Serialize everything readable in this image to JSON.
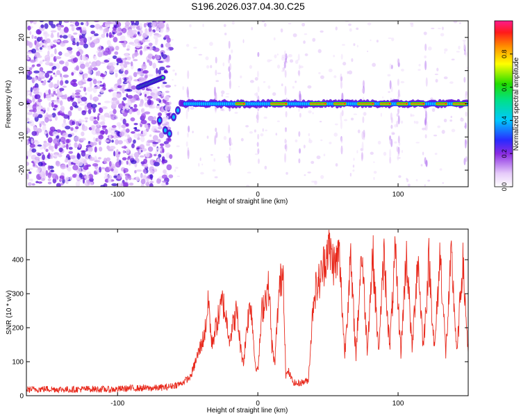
{
  "title": "S196.2026.037.04.30.C25",
  "chart_data": [
    {
      "type": "heatmap",
      "name": "spectrogram",
      "xlabel": "Height of straight line (km)",
      "ylabel": "Frequency (Hz)",
      "xlim": [
        -165,
        150
      ],
      "ylim": [
        -25,
        25
      ],
      "xticks": [
        -100,
        0,
        100
      ],
      "xtick_labels": [
        "-100",
        "0",
        "100"
      ],
      "yticks": [
        -20,
        -10,
        0,
        10,
        20
      ],
      "ytick_labels": [
        "-20",
        "-10",
        "0",
        "10",
        "20"
      ],
      "colorbar": {
        "label": "Normalized spectral amplitude",
        "range": [
          0.0,
          1.0
        ],
        "ticks": [
          0.0,
          0.2,
          0.4,
          0.6,
          0.8
        ],
        "tick_labels": [
          "0.0",
          "0.2",
          "0.4",
          "0.6",
          "0.8"
        ]
      },
      "features": {
        "noise_region_x": [
          -165,
          -62
        ],
        "early_segment": {
          "x": [
            -85,
            -67
          ],
          "freq": [
            5,
            8
          ]
        },
        "carrier_x": [
          -55,
          150
        ],
        "carrier_freq": 0
      }
    },
    {
      "type": "line",
      "name": "snr",
      "xlabel": "Height of straight line (km)",
      "ylabel": "SNR (10 * v/v)",
      "xlim": [
        -165,
        150
      ],
      "ylim": [
        0,
        490
      ],
      "xticks": [
        -100,
        0,
        100
      ],
      "xtick_labels": [
        "-100",
        "0",
        "100"
      ],
      "yticks": [
        0,
        100,
        200,
        300,
        400
      ],
      "ytick_labels": [
        "0",
        "100",
        "200",
        "300",
        "400"
      ],
      "line_color": "#e8291c",
      "series": [
        {
          "name": "SNR",
          "x": [
            -165,
            -150,
            -135,
            -120,
            -105,
            -90,
            -75,
            -65,
            -55,
            -48,
            -42,
            -38,
            -35,
            -33,
            -30,
            -25,
            -20,
            -15,
            -12,
            -10,
            -8,
            -5,
            -2,
            0,
            3,
            6,
            8,
            10,
            12,
            15,
            18,
            20,
            22,
            25,
            28,
            32,
            36,
            40,
            45,
            50,
            55,
            58,
            62,
            66,
            70,
            74,
            78,
            82,
            86,
            90,
            94,
            98,
            102,
            106,
            110,
            114,
            118,
            122,
            126,
            130,
            134,
            138,
            142,
            146,
            150
          ],
          "y": [
            18,
            20,
            18,
            20,
            18,
            22,
            22,
            25,
            35,
            55,
            130,
            180,
            280,
            150,
            200,
            280,
            170,
            250,
            130,
            100,
            200,
            280,
            100,
            70,
            250,
            300,
            320,
            150,
            90,
            300,
            380,
            60,
            70,
            40,
            35,
            40,
            45,
            300,
            350,
            440,
            380,
            420,
            120,
            400,
            120,
            430,
            140,
            420,
            130,
            410,
            140,
            415,
            130,
            420,
            135,
            410,
            140,
            400,
            130,
            420,
            125,
            410,
            120,
            400,
            130
          ]
        }
      ]
    }
  ]
}
